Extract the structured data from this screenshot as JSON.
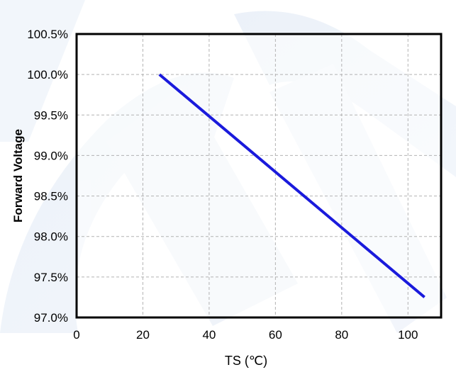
{
  "chart_data": {
    "type": "line",
    "title": "",
    "xlabel": "TS (℃)",
    "ylabel": "Forward Voltage",
    "xlim": [
      0,
      110
    ],
    "ylim": [
      97.0,
      100.5
    ],
    "x_ticks": [
      0,
      20,
      40,
      60,
      80,
      100
    ],
    "x_tick_labels": [
      "0",
      "20",
      "40",
      "60",
      "80",
      "100"
    ],
    "y_ticks": [
      97.0,
      97.5,
      98.0,
      98.5,
      99.0,
      99.5,
      100.0,
      100.5
    ],
    "y_tick_labels": [
      "97.0%",
      "97.5%",
      "98.0%",
      "98.5%",
      "99.0%",
      "99.5%",
      "100.0%",
      "100.5%"
    ],
    "grid": true,
    "legend": "none",
    "series": [
      {
        "x": [
          25,
          105
        ],
        "y": [
          100.0,
          97.25
        ],
        "color": "#1a1adc"
      }
    ]
  }
}
